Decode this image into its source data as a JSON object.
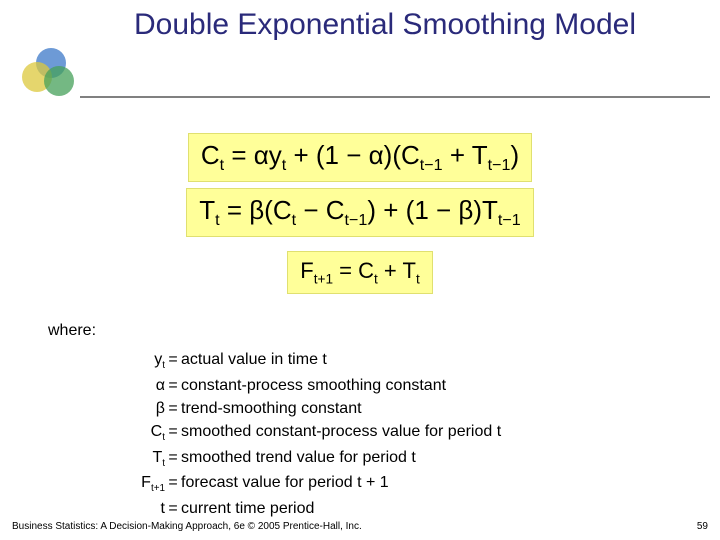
{
  "title": "Double Exponential Smoothing Model",
  "equations": {
    "eq1_html": "C<span class='sub'>t</span> = &alpha;y<span class='sub'>t</span> + (1 &minus; &alpha;)(C<span class='sub'>t&minus;1</span> + T<span class='sub'>t&minus;1</span>)",
    "eq2_html": "T<span class='sub'>t</span> = &beta;(C<span class='sub'>t</span> &minus; C<span class='sub'>t&minus;1</span>) + (1 &minus; &beta;)T<span class='sub'>t&minus;1</span>",
    "eq3_html": "F<span class='sub'>t+1</span> = C<span class='sub'>t</span> + T<span class='sub'>t</span>"
  },
  "where_label": "where:",
  "defs": [
    {
      "sym_html": "y<span class='sub'>t</span>",
      "txt": "actual value in time t"
    },
    {
      "sym_html": "&alpha;",
      "txt": "constant-process smoothing constant"
    },
    {
      "sym_html": "&beta;",
      "txt": "trend-smoothing constant"
    },
    {
      "sym_html": "C<span class='sub'>t</span>",
      "txt": "smoothed constant-process value for period t"
    },
    {
      "sym_html": "T<span class='sub'>t</span>",
      "txt": "smoothed trend value for period t"
    },
    {
      "sym_html": "F<span class='sub'>t+1</span>",
      "txt": "forecast value for period t + 1"
    },
    {
      "sym_html": "t",
      "txt": "current time period"
    }
  ],
  "footer": "Business Statistics: A Decision-Making Approach, 6e © 2005 Prentice-Hall, Inc.",
  "page_number": "59",
  "style": {
    "title_color": "#2a2a7a",
    "highlight_bg": "#ffff99",
    "title_fontsize": 30,
    "eq_fontsize": 26,
    "body_fontsize": 16,
    "logo_colors": [
      "rgba(60,120,200,0.75)",
      "rgba(220,200,60,0.75)",
      "rgba(70,160,90,0.75)"
    ]
  }
}
